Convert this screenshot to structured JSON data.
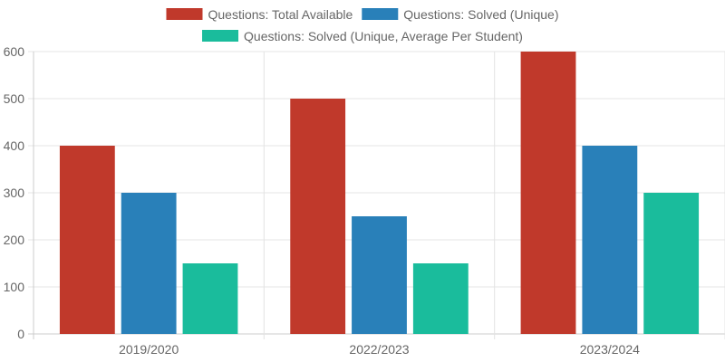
{
  "chart_data": {
    "type": "bar",
    "categories": [
      "2019/2020",
      "2022/2023",
      "2023/2024"
    ],
    "series": [
      {
        "name": "Questions: Total Available",
        "color": "#c0392b",
        "values": [
          400,
          500,
          600
        ]
      },
      {
        "name": "Questions: Solved (Unique)",
        "color": "#2980b9",
        "values": [
          300,
          250,
          400
        ]
      },
      {
        "name": "Questions: Solved (Unique, Average Per Student)",
        "color": "#1abc9c",
        "values": [
          150,
          150,
          300
        ]
      }
    ],
    "ylim": [
      0,
      600
    ],
    "yticks": [
      0,
      100,
      200,
      300,
      400,
      500,
      600
    ],
    "grid": true,
    "legend_position": "top"
  }
}
